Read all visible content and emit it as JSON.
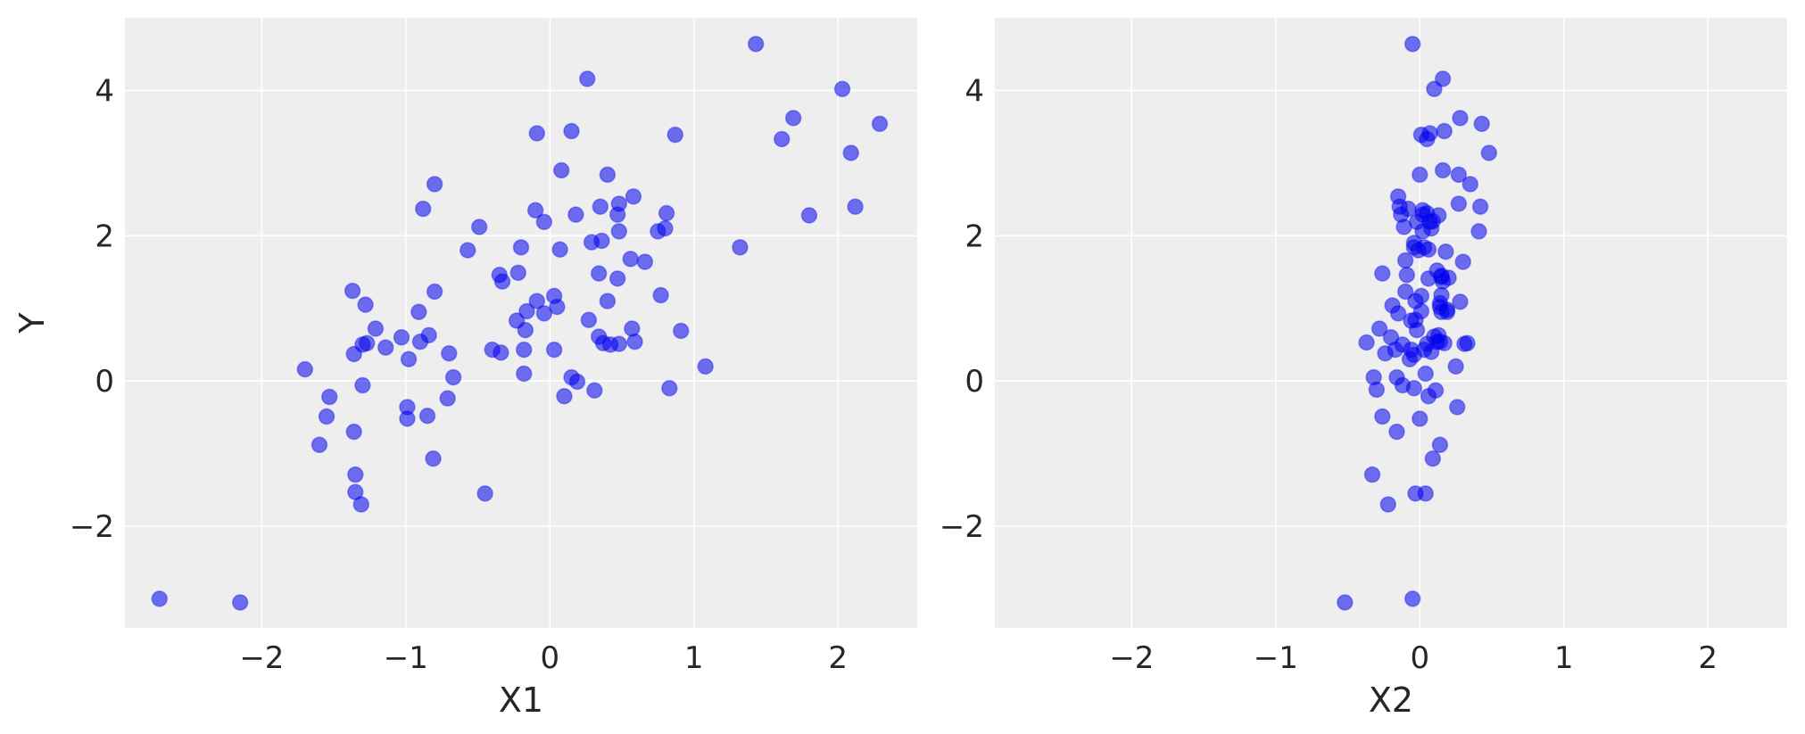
{
  "chart_data": [
    {
      "type": "scatter",
      "xlabel": "X1",
      "ylabel": "Y",
      "xlim": [
        -2.95,
        2.55
      ],
      "ylim": [
        -3.4,
        5.0
      ],
      "xticks": [
        -2,
        -1,
        0,
        1,
        2
      ],
      "yticks": [
        -2,
        0,
        2,
        4
      ],
      "xtick_labels": [
        "−2",
        "−1",
        "0",
        "1",
        "2"
      ],
      "ytick_labels": [
        "−2",
        "0",
        "2",
        "4"
      ],
      "grid": true,
      "point_color": "#0000ee",
      "x": [
        -2.71,
        -2.15,
        -1.7,
        -1.6,
        -1.55,
        -1.53,
        -1.37,
        -1.36,
        -1.36,
        -1.35,
        -1.35,
        -1.31,
        -1.3,
        -1.3,
        -1.28,
        -1.27,
        -1.21,
        -1.14,
        -1.03,
        -0.99,
        -0.99,
        -0.98,
        -0.91,
        -0.9,
        -0.88,
        -0.85,
        -0.84,
        -0.81,
        -0.8,
        -0.8,
        -0.71,
        -0.7,
        -0.67,
        -0.57,
        -0.49,
        -0.45,
        -0.4,
        -0.35,
        -0.34,
        -0.33,
        -0.23,
        -0.22,
        -0.2,
        -0.18,
        -0.18,
        -0.17,
        -0.16,
        -0.1,
        -0.09,
        -0.09,
        -0.04,
        -0.04,
        0.03,
        0.03,
        0.05,
        0.07,
        0.08,
        0.1,
        0.15,
        0.15,
        0.18,
        0.19,
        0.26,
        0.27,
        0.29,
        0.31,
        0.34,
        0.34,
        0.35,
        0.36,
        0.37,
        0.4,
        0.4,
        0.42,
        0.47,
        0.47,
        0.48,
        0.48,
        0.48,
        0.56,
        0.57,
        0.58,
        0.59,
        0.66,
        0.75,
        0.77,
        0.8,
        0.81,
        0.83,
        0.87,
        0.91,
        1.08,
        1.32,
        1.43,
        1.61,
        1.69,
        1.8,
        2.03,
        2.09,
        2.12,
        2.29
      ],
      "y": [
        -3.0,
        -3.05,
        0.16,
        -0.88,
        -0.49,
        -0.22,
        1.24,
        0.37,
        -0.7,
        -1.29,
        -1.53,
        -1.7,
        -0.06,
        0.5,
        1.05,
        0.52,
        0.72,
        0.46,
        0.6,
        -0.52,
        -0.36,
        0.3,
        0.95,
        0.54,
        2.37,
        -0.48,
        0.63,
        -1.07,
        2.71,
        1.23,
        -0.24,
        0.38,
        0.05,
        1.8,
        2.12,
        -1.55,
        0.43,
        1.46,
        0.39,
        1.37,
        0.83,
        1.49,
        1.84,
        0.1,
        0.43,
        0.7,
        0.96,
        2.35,
        3.41,
        1.1,
        0.93,
        2.19,
        1.17,
        0.43,
        1.02,
        1.81,
        2.9,
        -0.21,
        3.44,
        0.05,
        2.29,
        -0.01,
        4.16,
        0.84,
        1.91,
        -0.13,
        1.48,
        0.61,
        2.4,
        1.93,
        0.52,
        2.84,
        1.1,
        0.5,
        2.29,
        1.41,
        2.44,
        2.06,
        0.51,
        1.68,
        0.72,
        2.54,
        0.54,
        1.64,
        2.06,
        1.18,
        2.1,
        2.31,
        -0.1,
        3.39,
        0.69,
        0.2,
        1.84,
        4.64,
        3.33,
        3.62,
        2.28,
        4.02,
        3.14,
        2.4,
        3.54
      ]
    },
    {
      "type": "scatter",
      "xlabel": "X2",
      "ylabel": "",
      "xlim": [
        -2.95,
        2.55
      ],
      "ylim": [
        -3.4,
        5.0
      ],
      "xticks": [
        -2,
        -1,
        0,
        1,
        2
      ],
      "yticks": [
        -2,
        0,
        2,
        4
      ],
      "xtick_labels": [
        "−2",
        "−1",
        "0",
        "1",
        "2"
      ],
      "ytick_labels": [
        "−2",
        "0",
        "2",
        "4"
      ],
      "grid": true,
      "point_color": "#0000ee",
      "x": [
        -0.52,
        -0.05,
        -0.37,
        -0.33,
        -0.32,
        -0.3,
        -0.28,
        -0.26,
        -0.26,
        -0.24,
        -0.22,
        -0.2,
        -0.19,
        -0.17,
        -0.16,
        -0.16,
        -0.15,
        -0.15,
        -0.14,
        -0.13,
        -0.12,
        -0.12,
        -0.11,
        -0.1,
        -0.1,
        -0.09,
        -0.08,
        -0.07,
        -0.06,
        -0.06,
        -0.05,
        -0.04,
        -0.04,
        -0.04,
        -0.03,
        -0.03,
        -0.03,
        -0.02,
        -0.02,
        -0.01,
        0.0,
        0.0,
        0.01,
        0.01,
        0.01,
        0.02,
        0.02,
        0.02,
        0.03,
        0.03,
        0.04,
        0.04,
        0.05,
        0.05,
        0.05,
        0.06,
        0.06,
        0.07,
        0.07,
        0.08,
        0.08,
        0.09,
        0.09,
        0.1,
        0.1,
        0.11,
        0.12,
        0.12,
        0.13,
        0.13,
        0.14,
        0.14,
        0.14,
        0.15,
        0.15,
        0.16,
        0.16,
        0.16,
        0.17,
        0.17,
        0.18,
        0.19,
        0.2,
        0.25,
        0.26,
        0.27,
        0.28,
        0.28,
        0.3,
        0.31,
        0.33,
        0.35,
        0.41,
        0.42,
        0.43,
        0.48,
        -0.04,
        0.15,
        0.27,
        0.06,
        0.15,
        0.14,
        0.19
      ],
      "y": [
        -3.05,
        -3.0,
        0.53,
        -1.29,
        0.05,
        -0.12,
        0.72,
        1.48,
        -0.49,
        0.38,
        -1.7,
        0.6,
        1.04,
        0.43,
        0.05,
        -0.7,
        0.93,
        2.54,
        2.4,
        2.29,
        -0.06,
        0.5,
        2.12,
        1.23,
        1.66,
        1.46,
        2.37,
        0.3,
        0.83,
        0.43,
        4.64,
        1.84,
        1.9,
        0.36,
        -1.55,
        1.1,
        0.84,
        2.19,
        0.7,
        1.8,
        2.84,
        -0.52,
        3.39,
        0.96,
        1.17,
        2.06,
        2.35,
        2.29,
        0.43,
        1.84,
        0.1,
        -1.55,
        0.51,
        3.33,
        2.31,
        1.41,
        -0.21,
        3.41,
        2.19,
        2.1,
        0.4,
        -1.07,
        2.2,
        4.02,
        0.61,
        -0.13,
        1.52,
        0.54,
        2.28,
        0.63,
        1.02,
        -0.88,
        1.07,
        1.18,
        0.95,
        2.9,
        4.16,
        1.37,
        3.44,
        0.52,
        1.78,
        0.98,
        1.42,
        0.2,
        -0.36,
        2.44,
        1.09,
        3.62,
        1.64,
        0.51,
        0.52,
        2.71,
        2.06,
        2.4,
        3.54,
        3.14,
        -0.1,
        1.43,
        2.84,
        1.81,
        1.45,
        0.54,
        0.95
      ]
    }
  ]
}
